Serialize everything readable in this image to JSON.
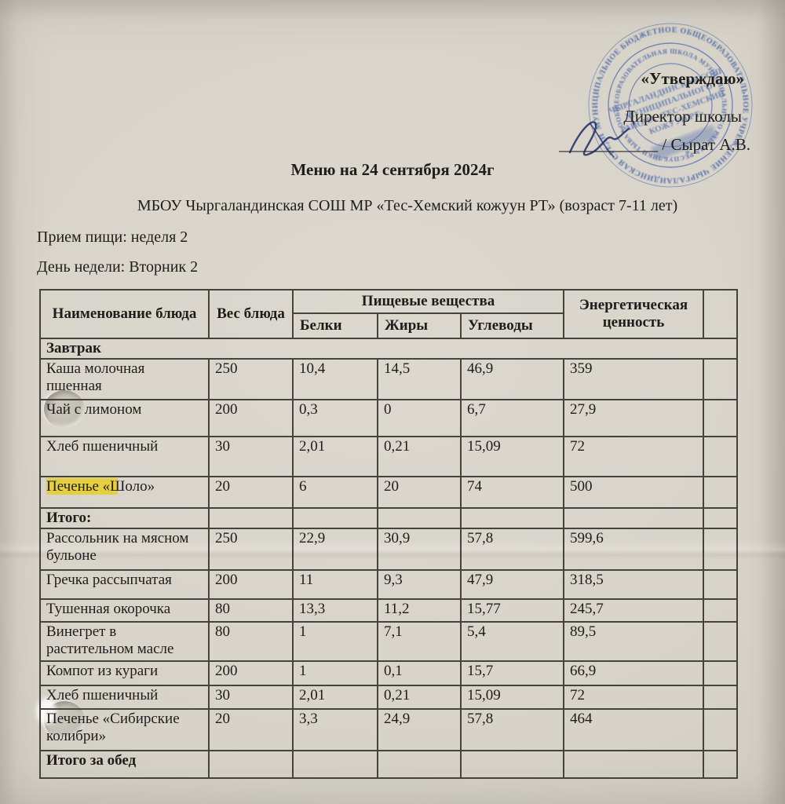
{
  "approval": {
    "approve_label": "«Утверждаю»",
    "role_label": "Директор школы",
    "signature_line": "____________",
    "name": "/ Сырат А.В."
  },
  "stamp": {
    "outer_ring_text": "МУНИЦИПАЛЬНОЕ БЮДЖЕТНОЕ ОБЩЕОБРАЗОВАТЕЛЬНОЕ УЧРЕЖДЕНИЕ ЧЫРГАЛАНДИНСКАЯ СРЕДНЯЯ ОБЩЕОБРАЗОВАТЕЛЬНАЯ ШКОЛА",
    "inner_ring_text": "ОБЩЕОБРАЗОВАТЕЛЬНАЯ ШКОЛА МУНИЦИПАЛЬНОГО РАЙОНА РЕСПУБЛИКИ ТЫВА * ОГРН 1031700586730 *",
    "center_line_1": "ЧЫРГАЛАНДИНСКАЯ СОШ",
    "center_line_2": "МУНИЦИПАЛЬНОГО",
    "center_line_3": "РАЙОНА «ТЕС-ХЕМСКИЙ",
    "center_line_4": "КОЖУУН РТ»",
    "asterisk": "*",
    "color": "#3f5fa8"
  },
  "header": {
    "title": "Меню на 24 сентября 2024г",
    "subtitle": "МБОУ Чыргаландинская СОШ МР «Тес-Хемский кожуун РТ» (возраст 7-11 лет)",
    "meal_line": "Прием пищи: неделя 2",
    "day_line": "День недели: Вторник 2"
  },
  "table": {
    "headers": {
      "name": "Наименование блюда",
      "weight": "Вес блюда",
      "nutrients_group": "Пищевые вещества",
      "protein": "Белки",
      "fat": "Жиры",
      "carbs": "Углеводы",
      "energy": "Энергетическая ценность",
      "blank": ""
    },
    "rows": [
      {
        "type": "section",
        "name": "Завтрак"
      },
      {
        "type": "item",
        "name": "Каша молочная пшенная",
        "weight": "250",
        "protein": "10,4",
        "fat": "14,5",
        "carbs": "46,9",
        "energy": "359"
      },
      {
        "type": "item",
        "name": "Чай с лимоном",
        "weight": "200",
        "protein": "0,3",
        "fat": "0",
        "carbs": "6,7",
        "energy": "27,9"
      },
      {
        "type": "item",
        "name": "Хлеб пшеничный",
        "weight": "30",
        "protein": "2,01",
        "fat": "0,21",
        "carbs": "15,09",
        "energy": "72"
      },
      {
        "type": "item",
        "highlight": true,
        "name": "Печенье «Шоло»",
        "weight": "20",
        "protein": "6",
        "fat": "20",
        "carbs": "74",
        "energy": "500"
      },
      {
        "type": "total",
        "name": "Итого:"
      },
      {
        "type": "item",
        "name": "Рассольник на мясном бульоне",
        "weight": "250",
        "protein": "22,9",
        "fat": "30,9",
        "carbs": "57,8",
        "energy": "599,6"
      },
      {
        "type": "item",
        "name": "Гречка рассыпчатая",
        "weight": "200",
        "protein": "11",
        "fat": "9,3",
        "carbs": "47,9",
        "energy": "318,5"
      },
      {
        "type": "item",
        "name": "Тушенная окорочка",
        "weight": "80",
        "protein": "13,3",
        "fat": "11,2",
        "carbs": "15,77",
        "energy": "245,7"
      },
      {
        "type": "item",
        "name": "Винегрет в растительном масле",
        "weight": "80",
        "protein": "1",
        "fat": "7,1",
        "carbs": "5,4",
        "energy": "89,5"
      },
      {
        "type": "item",
        "name": "Компот из кураги",
        "weight": "200",
        "protein": "1",
        "fat": "0,1",
        "carbs": "15,7",
        "energy": "66,9"
      },
      {
        "type": "item",
        "name": "Хлеб пшеничный",
        "weight": "30",
        "protein": "2,01",
        "fat": "0,21",
        "carbs": "15,09",
        "energy": "72"
      },
      {
        "type": "item",
        "name": "Печенье «Сибирские колибри»",
        "weight": "20",
        "protein": "3,3",
        "fat": "24,9",
        "carbs": "57,8",
        "energy": "464"
      },
      {
        "type": "total",
        "name": "Итого за обед"
      }
    ]
  },
  "colors": {
    "paper": "#d7d3c9",
    "ink": "#1e1d1b",
    "stamp_blue": "#3f5fa8",
    "highlight_yellow": "#e9ce26",
    "table_border": "#45433e"
  }
}
